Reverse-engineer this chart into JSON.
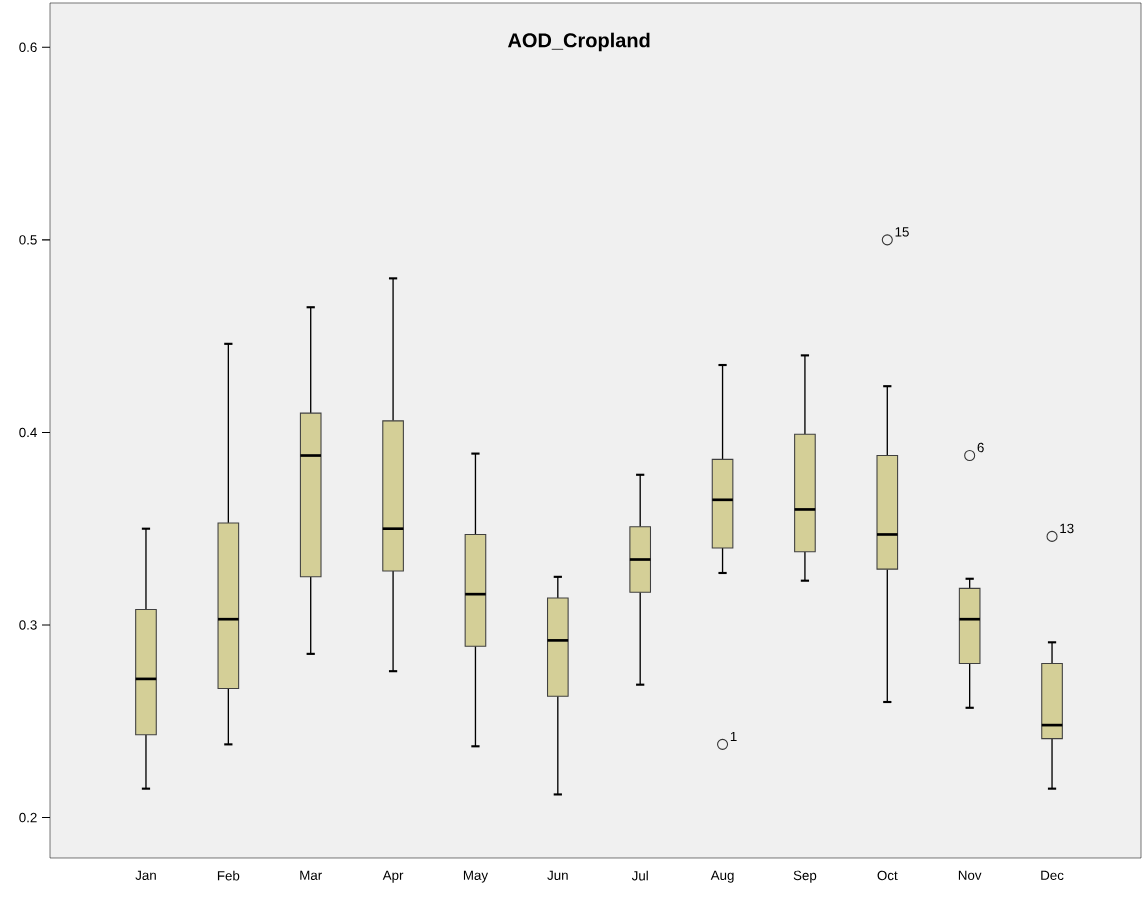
{
  "chart_data": {
    "type": "box",
    "title": "AOD_Cropland",
    "categories": [
      "Jan",
      "Feb",
      "Mar",
      "Apr",
      "May",
      "Jun",
      "Jul",
      "Aug",
      "Sep",
      "Oct",
      "Nov",
      "Dec"
    ],
    "color": "#d4cf97",
    "boxes": [
      {
        "low": 0.215,
        "q1": 0.243,
        "median": 0.272,
        "q3": 0.308,
        "high": 0.35
      },
      {
        "low": 0.238,
        "q1": 0.267,
        "median": 0.303,
        "q3": 0.353,
        "high": 0.446
      },
      {
        "low": 0.285,
        "q1": 0.325,
        "median": 0.388,
        "q3": 0.41,
        "high": 0.465
      },
      {
        "low": 0.276,
        "q1": 0.328,
        "median": 0.35,
        "q3": 0.406,
        "high": 0.48
      },
      {
        "low": 0.237,
        "q1": 0.289,
        "median": 0.316,
        "q3": 0.347,
        "high": 0.389
      },
      {
        "low": 0.212,
        "q1": 0.263,
        "median": 0.292,
        "q3": 0.314,
        "high": 0.325
      },
      {
        "low": 0.269,
        "q1": 0.317,
        "median": 0.334,
        "q3": 0.351,
        "high": 0.378
      },
      {
        "low": 0.327,
        "q1": 0.34,
        "median": 0.365,
        "q3": 0.386,
        "high": 0.435,
        "outliers": [
          0.238
        ]
      },
      {
        "low": 0.323,
        "q1": 0.338,
        "median": 0.36,
        "q3": 0.399,
        "high": 0.44
      },
      {
        "low": 0.26,
        "q1": 0.329,
        "median": 0.347,
        "q3": 0.388,
        "high": 0.424,
        "outliers": [
          0.5
        ]
      },
      {
        "low": 0.257,
        "q1": 0.28,
        "median": 0.303,
        "q3": 0.319,
        "high": 0.324,
        "outliers": [
          0.388
        ]
      },
      {
        "low": 0.215,
        "q1": 0.241,
        "median": 0.248,
        "q3": 0.28,
        "high": 0.291,
        "outliers": [
          0.346
        ]
      }
    ],
    "annotations": [
      "1",
      "15",
      "6",
      "13"
    ],
    "ylim": [
      0.179,
      0.623
    ],
    "yticks": [
      0.2,
      0.3,
      0.4,
      0.5,
      0.6
    ],
    "grid": false
  }
}
